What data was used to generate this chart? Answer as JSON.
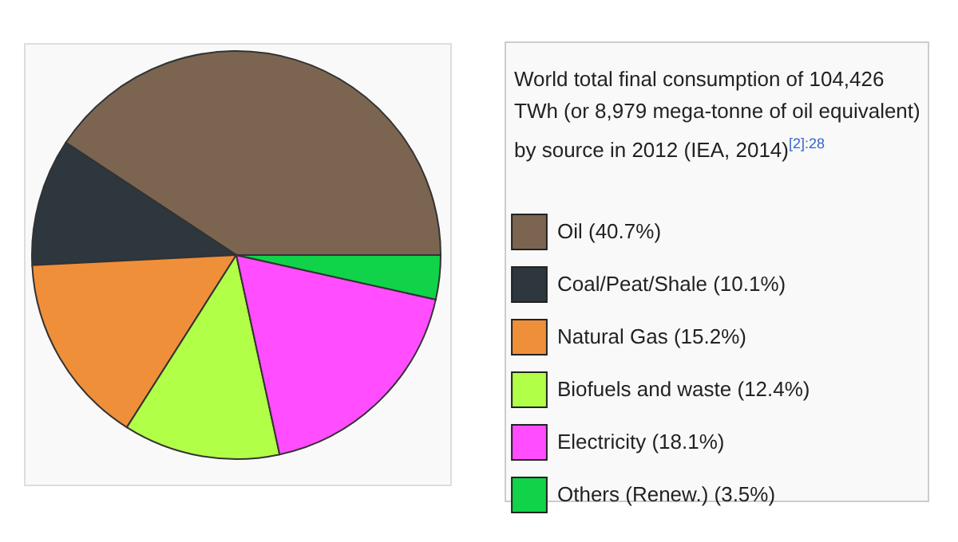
{
  "chart_data": {
    "type": "pie",
    "title": "World total final consumption of 104,426 TWh (or 8,979 mega-tonne of oil equivalent) by source in 2012 (IEA, 2014)$^{[2]:28}$",
    "categories": [
      "Oil (40.7%)",
      "Coal/Peat/Shale (10.1%)",
      "Natural Gas (15.2%)",
      "Biofuels and waste (12.4%)",
      "Electricity (18.1%)",
      "Others (Renew.) (3.5%)"
    ],
    "values": [
      40.7,
      10.1,
      15.2,
      12.4,
      18.1,
      3.5
    ],
    "colors": [
      "#7b6551",
      "#2e373e",
      "#f08f3a",
      "#b2ff48",
      "#ff4dff",
      "#10d34a"
    ],
    "legend": "right"
  }
}
